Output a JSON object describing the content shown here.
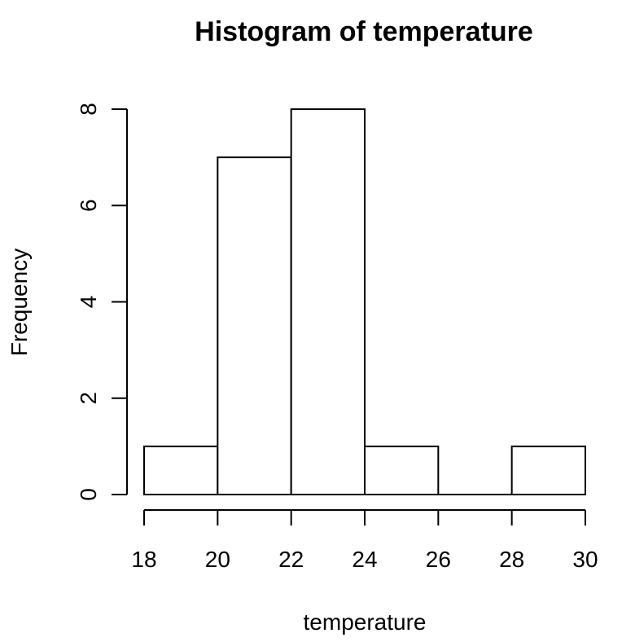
{
  "chart_data": {
    "type": "bar",
    "title": "Histogram of temperature",
    "xlabel": "temperature",
    "ylabel": "Frequency",
    "bins": [
      {
        "start": 18,
        "end": 20,
        "count": 1
      },
      {
        "start": 20,
        "end": 22,
        "count": 7
      },
      {
        "start": 22,
        "end": 24,
        "count": 8
      },
      {
        "start": 24,
        "end": 26,
        "count": 1
      },
      {
        "start": 26,
        "end": 28,
        "count": 0
      },
      {
        "start": 28,
        "end": 30,
        "count": 1
      }
    ],
    "xticks": [
      18,
      20,
      22,
      24,
      26,
      28,
      30
    ],
    "yticks": [
      0,
      2,
      4,
      6,
      8
    ],
    "xlim": [
      18,
      30
    ],
    "ylim": [
      0,
      8
    ],
    "grid": false,
    "colors": {
      "bar_fill": "#ffffff",
      "bar_stroke": "#000000"
    }
  }
}
